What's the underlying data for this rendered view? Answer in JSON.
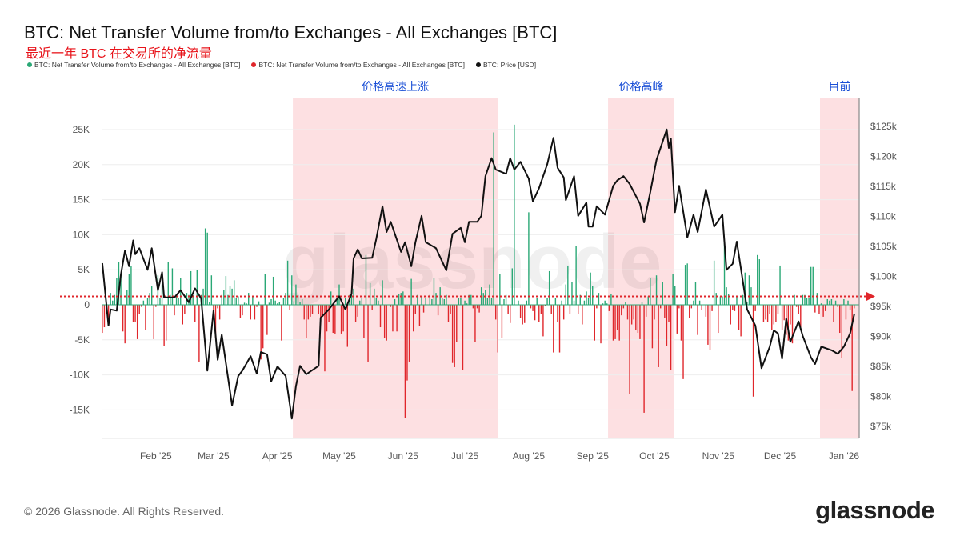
{
  "header": {
    "title": "BTC: Net Transfer Volume from/to Exchanges - All Exchanges [BTC]",
    "subtitle": "最近一年 BTC 在交易所的净流量"
  },
  "legend": [
    {
      "label": "BTC: Net Transfer Volume from/to Exchanges - All Exchanges [BTC]",
      "color": "#2aa876"
    },
    {
      "label": "BTC: Net Transfer Volume from/to Exchanges - All Exchanges [BTC]",
      "color": "#e0262b"
    },
    {
      "label": "BTC: Price [USD]",
      "color": "#111111"
    }
  ],
  "footer": {
    "copyright": "© 2026 Glassnode. All Rights Reserved.",
    "logo": "glassnode",
    "watermark": "glassnode"
  },
  "chart_data": {
    "type": "bar+line",
    "title": "BTC: Net Transfer Volume from/to Exchanges - All Exchanges [BTC]",
    "x_unit": "days since 2025-01-01",
    "xlim": [
      5,
      372
    ],
    "x_ticks": [
      {
        "label": "Feb '25",
        "day": 31
      },
      {
        "label": "Mar '25",
        "day": 59
      },
      {
        "label": "Apr '25",
        "day": 90
      },
      {
        "label": "May '25",
        "day": 120
      },
      {
        "label": "Jun '25",
        "day": 151
      },
      {
        "label": "Jul '25",
        "day": 181
      },
      {
        "label": "Aug '25",
        "day": 212
      },
      {
        "label": "Sep '25",
        "day": 243
      },
      {
        "label": "Oct '25",
        "day": 273
      },
      {
        "label": "Nov '25",
        "day": 304
      },
      {
        "label": "Dec '25",
        "day": 334
      },
      {
        "label": "Jan '26",
        "day": 365
      }
    ],
    "left_axis": {
      "unit": "K BTC",
      "ylim": [
        -19,
        26.5
      ],
      "ticks": [
        {
          "label": "25K",
          "value": 25
        },
        {
          "label": "20K",
          "value": 20
        },
        {
          "label": "15K",
          "value": 15
        },
        {
          "label": "10K",
          "value": 10
        },
        {
          "label": "5K",
          "value": 5
        },
        {
          "label": "0",
          "value": 0
        },
        {
          "label": "-5K",
          "value": -5
        },
        {
          "label": "-10K",
          "value": -10
        },
        {
          "label": "-15K",
          "value": -15
        }
      ]
    },
    "right_axis": {
      "unit": "k USD",
      "ylim": [
        73,
        128
      ],
      "ticks": [
        {
          "label": "$125k",
          "value": 125
        },
        {
          "label": "$120k",
          "value": 120
        },
        {
          "label": "$115k",
          "value": 115
        },
        {
          "label": "$110k",
          "value": 110
        },
        {
          "label": "$105k",
          "value": 105
        },
        {
          "label": "$100k",
          "value": 100
        },
        {
          "label": "$95k",
          "value": 95
        },
        {
          "label": "$90k",
          "value": 90
        },
        {
          "label": "$85k",
          "value": 85
        },
        {
          "label": "$80k",
          "value": 80
        },
        {
          "label": "$75k",
          "value": 75
        }
      ]
    },
    "net_flow": {
      "start_day": 5,
      "unit": "K BTC",
      "positive_color": "#2aa876",
      "negative_color": "#e0262b",
      "values": [
        -4.0,
        -3.2,
        -1.3,
        -2.8,
        1.7,
        0.6,
        1.4,
        3.8,
        6.1,
        4.4,
        -3.8,
        -5.5,
        2.1,
        4.4,
        5.5,
        -2.4,
        -2.4,
        -4.9,
        -1.3,
        -0.3,
        0.6,
        -3.6,
        1.0,
        1.7,
        2.7,
        -4.9,
        -0.3,
        4.2,
        1.0,
        2.9,
        -5.9,
        -5.1,
        6.1,
        1.4,
        5.2,
        -1.5,
        1.2,
        1.0,
        3.8,
        -2.8,
        -1.3,
        1.7,
        1.4,
        4.8,
        1.4,
        -2.4,
        5.0,
        -8.1,
        1.4,
        2.3,
        10.9,
        10.3,
        0.4,
        4.2,
        -2.1,
        -4.7,
        -0.5,
        -2.1,
        1.4,
        2.1,
        4.1,
        1.4,
        2.7,
        2.3,
        3.5,
        1.0,
        1.2,
        -1.9,
        -1.5,
        0.3,
        0.2,
        1.7,
        -2.1,
        1.2,
        -2.1,
        -0.3,
        0.5,
        -7.8,
        -6.2,
        4.4,
        -4.3,
        0.3,
        0.8,
        4.0,
        0.6,
        0.2,
        0.4,
        -5.1,
        1.0,
        1.7,
        6.3,
        -0.7,
        4.2,
        0.5,
        2.9,
        1.4,
        0.4,
        0.8,
        -2.1,
        -4.7,
        -2.1,
        -1.7,
        -1.3,
        0,
        0,
        -1.3,
        -2.8,
        -1.7,
        -9.5,
        -3.8,
        -2.4,
        1.9,
        -4.0,
        -4.1,
        1.0,
        2.9,
        -4.1,
        -3.8,
        1.0,
        -6.0,
        1.4,
        1.4,
        2.3,
        -2.4,
        -1.7,
        0.6,
        1.0,
        -4.7,
        7.1,
        -8.1,
        3.1,
        -0.7,
        2.3,
        1.0,
        0.6,
        -3.2,
        3.5,
        -4.7,
        -5.1,
        0,
        -0.3,
        -3.8,
        0.8,
        -3.8,
        1.6,
        1.7,
        1.9,
        -16.1,
        -10.8,
        -8.1,
        3.7,
        -3.8,
        -1.3,
        1.4,
        -3.0,
        1.2,
        -1.1,
        1.0,
        0,
        1.4,
        0.8,
        3.8,
        1.7,
        -1.5,
        2.5,
        1.0,
        0.8,
        1.4,
        -2.4,
        -1.3,
        -8.3,
        -8.9,
        -5.3,
        1.0,
        1.0,
        -9.3,
        0.6,
        0.2,
        1.4,
        1.4,
        -0.5,
        -5.3,
        -0.5,
        -1.1,
        2.5,
        1.7,
        2.1,
        1.0,
        2.9,
        1.0,
        24.6,
        -2.1,
        -6.8,
        4.4,
        -4.7,
        0.8,
        1.4,
        -1.3,
        -2.6,
        5.2,
        25.7,
        0,
        0.6,
        -1.9,
        -2.8,
        -2.6,
        0.6,
        13.2,
        -0.5,
        -0.9,
        -2.2,
        1.0,
        -2.4,
        -1.3,
        -4.5,
        -0.2,
        1.0,
        4.8,
        -1.3,
        -6.8,
        1.0,
        -2.4,
        -6.8,
        0.6,
        -2.1,
        2.9,
        5.6,
        -1.3,
        3.3,
        0.6,
        8.4,
        -1.3,
        1.4,
        -2.8,
        0.6,
        1.9,
        1.0,
        4.6,
        2.7,
        -5.1,
        -0.5,
        1.7,
        -5.5,
        0.2,
        0.6,
        0.2,
        -0.9,
        1.6,
        -5.1,
        -4.9,
        -3.6,
        -5.1,
        -1.5,
        -0.5,
        0.4,
        -2.1,
        -12.7,
        -2.8,
        -2.1,
        -3.6,
        -4.0,
        -4.9,
        0.4,
        -15.4,
        -1.7,
        1.2,
        3.8,
        -6.2,
        -2.1,
        4.2,
        -8.9,
        -0.5,
        3.3,
        -1.9,
        -5.9,
        -2.4,
        -9.3,
        4.4,
        2.7,
        -4.1,
        -0.5,
        -5.1,
        -10.6,
        5.7,
        5.9,
        -1.9,
        -0.5,
        0.6,
        3.3,
        -4.3,
        0.6,
        -0.7,
        0,
        -1.7,
        -5.7,
        -6.4,
        -0.9,
        6.3,
        1.7,
        -4.0,
        1.2,
        1.2,
        8.8,
        2.5,
        1.6,
        -2.8,
        -0.7,
        -0.9,
        1.2,
        -3.6,
        -4.5,
        1.4,
        4.6,
        0.4,
        4.2,
        2.5,
        -13.1,
        -0.9,
        7.1,
        6.5,
        0,
        -2.4,
        -2.1,
        -2.4,
        -1.3,
        -3.6,
        -2.8,
        -2.4,
        -1.3,
        5.6,
        -3.6,
        -2.2,
        -4.3,
        -5.1,
        -2.8,
        -5.5,
        1.4,
        -0.3,
        -1.3,
        -3.6,
        1.4,
        1.4,
        1.0,
        1.0,
        5.4,
        5.4,
        -1.1,
        1.7,
        -1.3,
        0.2,
        -1.7,
        -0.9,
        0.8,
        0.6,
        0.8,
        -2.4,
        0.6,
        -0.3,
        -4.0,
        -7.6,
        0.8,
        -2.1,
        0.6,
        -0.7,
        -12.3,
        -0.5
      ]
    },
    "price": {
      "unit": "k USD",
      "color": "#111111",
      "points": [
        [
          5,
          102.2
        ],
        [
          8,
          91.8
        ],
        [
          9,
          94.5
        ],
        [
          12,
          94.3
        ],
        [
          14,
          100.3
        ],
        [
          16,
          104.3
        ],
        [
          18,
          101.7
        ],
        [
          20,
          106
        ],
        [
          21,
          103.7
        ],
        [
          23,
          104.7
        ],
        [
          27,
          101.1
        ],
        [
          29,
          104.7
        ],
        [
          32,
          97.7
        ],
        [
          34,
          100.7
        ],
        [
          35,
          96.5
        ],
        [
          40,
          96.5
        ],
        [
          43,
          97.7
        ],
        [
          47,
          95.7
        ],
        [
          50,
          98
        ],
        [
          53,
          96.3
        ],
        [
          56,
          84.3
        ],
        [
          59,
          94.3
        ],
        [
          61,
          86.1
        ],
        [
          63,
          90.3
        ],
        [
          68,
          78.5
        ],
        [
          71,
          83.4
        ],
        [
          73,
          84.3
        ],
        [
          77,
          86.7
        ],
        [
          80,
          83.8
        ],
        [
          82,
          87.4
        ],
        [
          85,
          87
        ],
        [
          87,
          82.5
        ],
        [
          90,
          85
        ],
        [
          94,
          83.4
        ],
        [
          97,
          76.3
        ],
        [
          99,
          81.7
        ],
        [
          101,
          85.1
        ],
        [
          104,
          83.7
        ],
        [
          110,
          85.1
        ],
        [
          111,
          93.1
        ],
        [
          115,
          94.5
        ],
        [
          120,
          96.7
        ],
        [
          123,
          94.5
        ],
        [
          126,
          97.1
        ],
        [
          127,
          103
        ],
        [
          129,
          104.5
        ],
        [
          131,
          103
        ],
        [
          136,
          103.1
        ],
        [
          138,
          106.3
        ],
        [
          141,
          111.7
        ],
        [
          143,
          107.4
        ],
        [
          145,
          109.1
        ],
        [
          150,
          104.1
        ],
        [
          152,
          105.7
        ],
        [
          155,
          101.7
        ],
        [
          157,
          105.7
        ],
        [
          160,
          110.1
        ],
        [
          162,
          105.7
        ],
        [
          167,
          104.7
        ],
        [
          172,
          101
        ],
        [
          175,
          107.1
        ],
        [
          179,
          108.1
        ],
        [
          181,
          105.7
        ],
        [
          183,
          109.1
        ],
        [
          187,
          109.1
        ],
        [
          189,
          110.1
        ],
        [
          191,
          116.7
        ],
        [
          194,
          119.7
        ],
        [
          196,
          117.8
        ],
        [
          201,
          117.1
        ],
        [
          203,
          119.7
        ],
        [
          205,
          117.8
        ],
        [
          208,
          119.1
        ],
        [
          212,
          116.3
        ],
        [
          214,
          112.5
        ],
        [
          217,
          114.7
        ],
        [
          221,
          118.7
        ],
        [
          224,
          123.1
        ],
        [
          226,
          118.1
        ],
        [
          229,
          116.5
        ],
        [
          230,
          112.7
        ],
        [
          234,
          116.7
        ],
        [
          236,
          110.1
        ],
        [
          240,
          112.3
        ],
        [
          241,
          108.3
        ],
        [
          243,
          108.3
        ],
        [
          245,
          111.7
        ],
        [
          249,
          110.3
        ],
        [
          253,
          115.1
        ],
        [
          255,
          116
        ],
        [
          258,
          116.7
        ],
        [
          261,
          115.4
        ],
        [
          266,
          112.1
        ],
        [
          268,
          109
        ],
        [
          271,
          114
        ],
        [
          274,
          119.4
        ],
        [
          279,
          124.5
        ],
        [
          280,
          121.4
        ],
        [
          281,
          123
        ],
        [
          283,
          110.7
        ],
        [
          285,
          115.1
        ],
        [
          289,
          106.5
        ],
        [
          292,
          110.3
        ],
        [
          294,
          107.4
        ],
        [
          298,
          114.5
        ],
        [
          302,
          108.3
        ],
        [
          306,
          110.3
        ],
        [
          308,
          101.1
        ],
        [
          311,
          102.1
        ],
        [
          313,
          105.8
        ],
        [
          318,
          94.5
        ],
        [
          322,
          91.8
        ],
        [
          325,
          84.7
        ],
        [
          329,
          88.3
        ],
        [
          331,
          91
        ],
        [
          333,
          90.5
        ],
        [
          335,
          86.3
        ],
        [
          337,
          93
        ],
        [
          339,
          89.1
        ],
        [
          343,
          92.5
        ],
        [
          345,
          90.1
        ],
        [
          349,
          86.5
        ],
        [
          351,
          85.4
        ],
        [
          354,
          88.3
        ],
        [
          359,
          87.7
        ],
        [
          362,
          87.1
        ],
        [
          365,
          88.3
        ],
        [
          368,
          90.5
        ],
        [
          370,
          93.7
        ]
      ]
    },
    "reference_line": {
      "axis": "left",
      "value": 1.2,
      "color": "#e0262b",
      "style": "dotted-with-arrow"
    },
    "annotations": [
      {
        "label": "价格高速上涨",
        "start_day": 97.5,
        "end_day": 197
      },
      {
        "label": "价格高峰",
        "start_day": 250.5,
        "end_day": 282.7
      },
      {
        "label": "目前",
        "start_day": 353.4,
        "end_day": 372.4
      }
    ],
    "annotation_fill": "#fde0e2",
    "annotation_text_color": "#1a4fd6",
    "grid": true
  }
}
